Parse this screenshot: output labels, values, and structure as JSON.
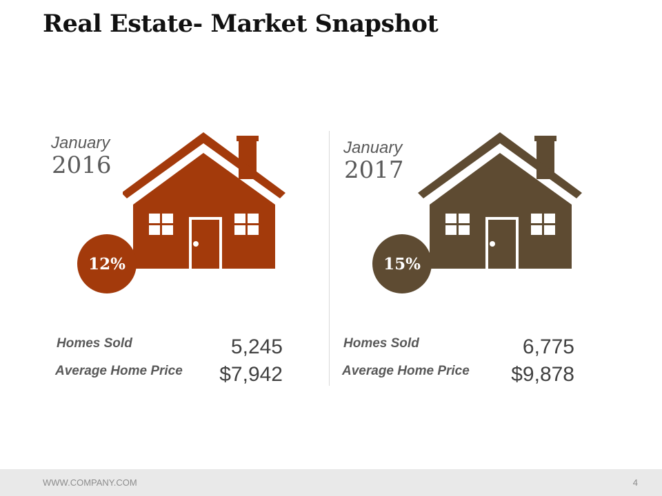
{
  "slide": {
    "title": "Real Estate- Market Snapshot"
  },
  "panels": [
    {
      "month": "January",
      "year": "2016",
      "badge": "12%",
      "color": "#A33A0B",
      "homes_sold_label": "Homes Sold",
      "homes_sold_value": "5,245",
      "avg_price_label": "Average Home Price",
      "avg_price_value": "$7,942"
    },
    {
      "month": "January",
      "year": "2017",
      "badge": "15%",
      "color": "#5E4B32",
      "homes_sold_label": "Homes Sold",
      "homes_sold_value": "6,775",
      "avg_price_label": "Average Home Price",
      "avg_price_value": "$9,878"
    }
  ],
  "footer": {
    "url": "WWW.COMPANY.COM",
    "page_number": "4"
  }
}
